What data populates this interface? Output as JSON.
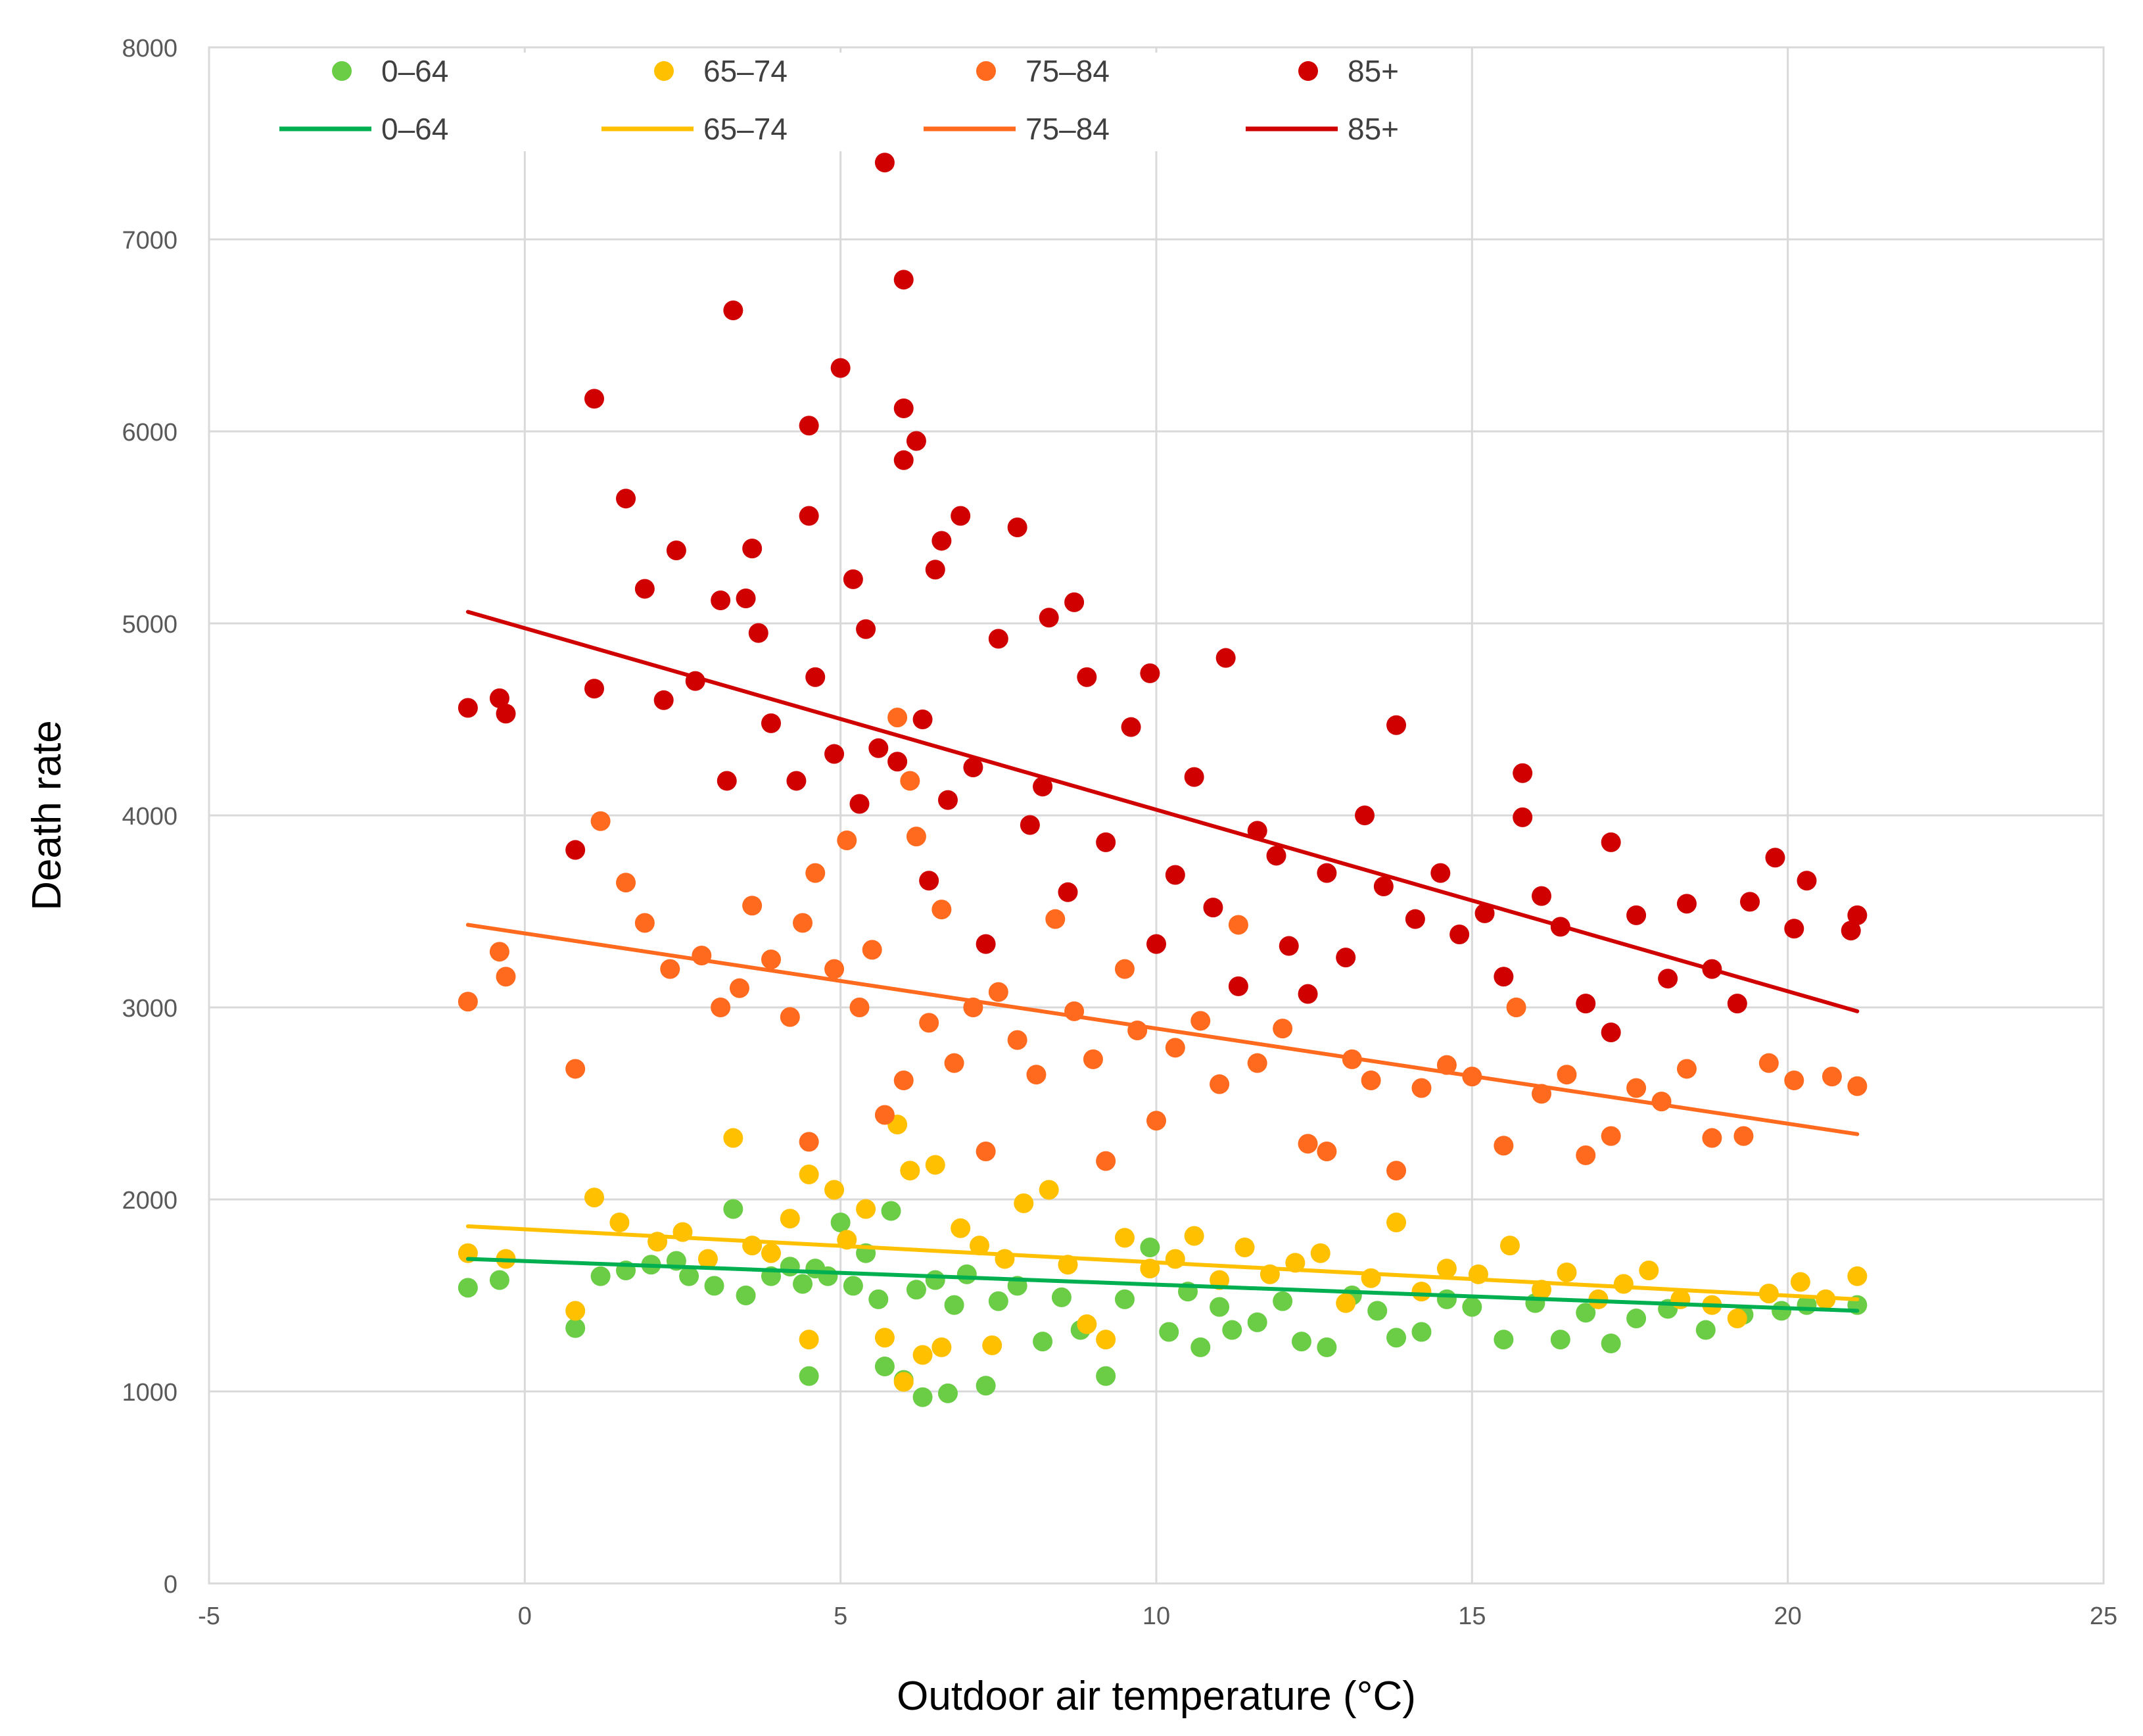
{
  "chart_data": {
    "type": "scatter",
    "title": "",
    "xlabel": "Outdoor air temperature (°C)",
    "ylabel": "Death rate",
    "xlim": [
      -5,
      25
    ],
    "ylim": [
      0,
      8000
    ],
    "x_ticks": [
      "-5",
      "0",
      "5",
      "10",
      "15",
      "20",
      "25"
    ],
    "y_ticks": [
      "0",
      "1000",
      "2000",
      "3000",
      "4000",
      "5000",
      "6000",
      "7000",
      "8000"
    ],
    "grid": true,
    "legend_position": "top",
    "series": [
      {
        "name": "0–64",
        "kind": "points",
        "color": "#6acd45",
        "points": [
          [
            -0.9,
            1540
          ],
          [
            -0.4,
            1580
          ],
          [
            0.8,
            1330
          ],
          [
            1.2,
            1600
          ],
          [
            1.6,
            1630
          ],
          [
            2.0,
            1660
          ],
          [
            2.4,
            1680
          ],
          [
            2.6,
            1600
          ],
          [
            3.0,
            1550
          ],
          [
            3.3,
            1950
          ],
          [
            3.5,
            1500
          ],
          [
            3.9,
            1600
          ],
          [
            4.2,
            1650
          ],
          [
            4.4,
            1560
          ],
          [
            4.5,
            1080
          ],
          [
            4.6,
            1640
          ],
          [
            4.8,
            1600
          ],
          [
            5.0,
            1880
          ],
          [
            5.2,
            1550
          ],
          [
            5.4,
            1720
          ],
          [
            5.6,
            1480
          ],
          [
            5.7,
            1130
          ],
          [
            5.8,
            1940
          ],
          [
            6.0,
            1060
          ],
          [
            6.2,
            1530
          ],
          [
            6.3,
            970
          ],
          [
            6.5,
            1580
          ],
          [
            6.7,
            990
          ],
          [
            6.8,
            1450
          ],
          [
            7.0,
            1610
          ],
          [
            7.3,
            1030
          ],
          [
            7.5,
            1470
          ],
          [
            7.8,
            1550
          ],
          [
            8.2,
            1260
          ],
          [
            8.5,
            1490
          ],
          [
            8.8,
            1320
          ],
          [
            9.2,
            1080
          ],
          [
            9.5,
            1480
          ],
          [
            9.9,
            1750
          ],
          [
            10.2,
            1310
          ],
          [
            10.5,
            1520
          ],
          [
            10.7,
            1230
          ],
          [
            11.0,
            1440
          ],
          [
            11.2,
            1320
          ],
          [
            11.6,
            1360
          ],
          [
            12.0,
            1470
          ],
          [
            12.3,
            1260
          ],
          [
            12.7,
            1230
          ],
          [
            13.1,
            1500
          ],
          [
            13.5,
            1420
          ],
          [
            13.8,
            1280
          ],
          [
            14.2,
            1310
          ],
          [
            14.6,
            1480
          ],
          [
            15.0,
            1440
          ],
          [
            15.5,
            1270
          ],
          [
            16.0,
            1460
          ],
          [
            16.4,
            1270
          ],
          [
            16.8,
            1410
          ],
          [
            17.2,
            1250
          ],
          [
            17.6,
            1380
          ],
          [
            18.1,
            1430
          ],
          [
            18.7,
            1320
          ],
          [
            19.3,
            1400
          ],
          [
            19.9,
            1420
          ],
          [
            20.3,
            1450
          ],
          [
            21.1,
            1450
          ]
        ]
      },
      {
        "name": "65–74",
        "kind": "points",
        "color": "#ffc000",
        "points": [
          [
            -0.9,
            1720
          ],
          [
            -0.3,
            1690
          ],
          [
            0.8,
            1420
          ],
          [
            1.1,
            2010
          ],
          [
            1.5,
            1880
          ],
          [
            2.1,
            1780
          ],
          [
            2.5,
            1830
          ],
          [
            2.9,
            1690
          ],
          [
            3.3,
            2320
          ],
          [
            3.6,
            1760
          ],
          [
            3.9,
            1720
          ],
          [
            4.2,
            1900
          ],
          [
            4.5,
            1270
          ],
          [
            4.5,
            2130
          ],
          [
            4.9,
            2050
          ],
          [
            5.1,
            1790
          ],
          [
            5.4,
            1950
          ],
          [
            5.7,
            1280
          ],
          [
            5.9,
            2390
          ],
          [
            6.0,
            1050
          ],
          [
            6.1,
            2150
          ],
          [
            6.3,
            1190
          ],
          [
            6.5,
            2180
          ],
          [
            6.6,
            1230
          ],
          [
            6.9,
            1850
          ],
          [
            7.2,
            1760
          ],
          [
            7.4,
            1240
          ],
          [
            7.6,
            1690
          ],
          [
            7.9,
            1980
          ],
          [
            8.3,
            2050
          ],
          [
            8.6,
            1660
          ],
          [
            8.9,
            1350
          ],
          [
            9.2,
            1270
          ],
          [
            9.5,
            1800
          ],
          [
            9.9,
            1640
          ],
          [
            10.3,
            1690
          ],
          [
            10.6,
            1810
          ],
          [
            11.0,
            1580
          ],
          [
            11.4,
            1750
          ],
          [
            11.8,
            1610
          ],
          [
            12.2,
            1670
          ],
          [
            12.6,
            1720
          ],
          [
            13.0,
            1460
          ],
          [
            13.4,
            1590
          ],
          [
            13.8,
            1880
          ],
          [
            14.2,
            1520
          ],
          [
            14.6,
            1640
          ],
          [
            15.1,
            1610
          ],
          [
            15.6,
            1760
          ],
          [
            16.1,
            1530
          ],
          [
            16.5,
            1620
          ],
          [
            17.0,
            1480
          ],
          [
            17.4,
            1560
          ],
          [
            17.8,
            1630
          ],
          [
            18.3,
            1480
          ],
          [
            18.8,
            1450
          ],
          [
            19.2,
            1380
          ],
          [
            19.7,
            1510
          ],
          [
            20.2,
            1570
          ],
          [
            20.6,
            1480
          ],
          [
            21.1,
            1600
          ]
        ]
      },
      {
        "name": "75–84",
        "kind": "points",
        "color": "#ff6a1f",
        "points": [
          [
            -0.9,
            3030
          ],
          [
            -0.4,
            3290
          ],
          [
            -0.3,
            3160
          ],
          [
            0.8,
            2680
          ],
          [
            1.2,
            3970
          ],
          [
            1.6,
            3650
          ],
          [
            1.9,
            3440
          ],
          [
            2.3,
            3200
          ],
          [
            2.8,
            3270
          ],
          [
            3.1,
            3000
          ],
          [
            3.4,
            3100
          ],
          [
            3.6,
            3530
          ],
          [
            3.9,
            3250
          ],
          [
            4.2,
            2950
          ],
          [
            4.4,
            3440
          ],
          [
            4.5,
            2300
          ],
          [
            4.6,
            3700
          ],
          [
            4.9,
            3200
          ],
          [
            5.1,
            3870
          ],
          [
            5.3,
            3000
          ],
          [
            5.5,
            3300
          ],
          [
            5.7,
            2440
          ],
          [
            5.9,
            4510
          ],
          [
            6.0,
            2620
          ],
          [
            6.1,
            4180
          ],
          [
            6.2,
            3890
          ],
          [
            6.4,
            2920
          ],
          [
            6.6,
            3510
          ],
          [
            6.8,
            2710
          ],
          [
            7.1,
            3000
          ],
          [
            7.3,
            2250
          ],
          [
            7.5,
            3080
          ],
          [
            7.8,
            2830
          ],
          [
            8.1,
            2650
          ],
          [
            8.4,
            3460
          ],
          [
            8.7,
            2980
          ],
          [
            9.0,
            2730
          ],
          [
            9.2,
            2200
          ],
          [
            9.5,
            3200
          ],
          [
            9.7,
            2880
          ],
          [
            10.0,
            2410
          ],
          [
            10.3,
            2790
          ],
          [
            10.7,
            2930
          ],
          [
            11.0,
            2600
          ],
          [
            11.3,
            3430
          ],
          [
            11.6,
            2710
          ],
          [
            12.0,
            2890
          ],
          [
            12.4,
            2290
          ],
          [
            12.7,
            2250
          ],
          [
            13.1,
            2730
          ],
          [
            13.4,
            2620
          ],
          [
            13.8,
            2150
          ],
          [
            14.2,
            2580
          ],
          [
            14.6,
            2700
          ],
          [
            15.0,
            2640
          ],
          [
            15.5,
            2280
          ],
          [
            15.7,
            3000
          ],
          [
            16.1,
            2550
          ],
          [
            16.5,
            2650
          ],
          [
            16.8,
            2230
          ],
          [
            17.2,
            2330
          ],
          [
            17.6,
            2580
          ],
          [
            18.0,
            2510
          ],
          [
            18.4,
            2680
          ],
          [
            18.8,
            2320
          ],
          [
            19.3,
            2330
          ],
          [
            19.7,
            2710
          ],
          [
            20.1,
            2620
          ],
          [
            20.7,
            2640
          ],
          [
            21.1,
            2590
          ]
        ]
      },
      {
        "name": "85+",
        "kind": "points",
        "color": "#d00000",
        "points": [
          [
            -0.9,
            4560
          ],
          [
            -0.4,
            4610
          ],
          [
            -0.3,
            4530
          ],
          [
            0.8,
            3820
          ],
          [
            1.1,
            6170
          ],
          [
            1.1,
            4660
          ],
          [
            1.6,
            5650
          ],
          [
            1.9,
            5180
          ],
          [
            2.2,
            4600
          ],
          [
            2.4,
            5380
          ],
          [
            2.7,
            4700
          ],
          [
            3.1,
            5120
          ],
          [
            3.2,
            4180
          ],
          [
            3.3,
            6630
          ],
          [
            3.5,
            5130
          ],
          [
            3.6,
            5390
          ],
          [
            3.7,
            4950
          ],
          [
            3.9,
            4480
          ],
          [
            4.3,
            4180
          ],
          [
            4.5,
            6030
          ],
          [
            4.5,
            5560
          ],
          [
            4.6,
            4720
          ],
          [
            4.9,
            4320
          ],
          [
            5.0,
            6330
          ],
          [
            5.2,
            5230
          ],
          [
            5.3,
            4060
          ],
          [
            5.4,
            4970
          ],
          [
            5.6,
            4350
          ],
          [
            5.7,
            7400
          ],
          [
            5.9,
            4280
          ],
          [
            6.0,
            6790
          ],
          [
            6.0,
            6120
          ],
          [
            6.0,
            5850
          ],
          [
            6.2,
            5950
          ],
          [
            6.3,
            4500
          ],
          [
            6.4,
            3660
          ],
          [
            6.5,
            5280
          ],
          [
            6.6,
            5430
          ],
          [
            6.7,
            4080
          ],
          [
            6.9,
            5560
          ],
          [
            7.1,
            4250
          ],
          [
            7.3,
            3330
          ],
          [
            7.5,
            4920
          ],
          [
            7.8,
            5500
          ],
          [
            8.0,
            3950
          ],
          [
            8.2,
            4150
          ],
          [
            8.3,
            5030
          ],
          [
            8.6,
            3600
          ],
          [
            8.7,
            5110
          ],
          [
            8.9,
            4720
          ],
          [
            9.2,
            3860
          ],
          [
            9.6,
            4460
          ],
          [
            9.9,
            4740
          ],
          [
            10.0,
            3330
          ],
          [
            10.3,
            3690
          ],
          [
            10.6,
            4200
          ],
          [
            10.9,
            3520
          ],
          [
            11.1,
            4820
          ],
          [
            11.3,
            3110
          ],
          [
            11.6,
            3920
          ],
          [
            11.9,
            3790
          ],
          [
            12.1,
            3320
          ],
          [
            12.4,
            3070
          ],
          [
            12.7,
            3700
          ],
          [
            13.0,
            3260
          ],
          [
            13.3,
            4000
          ],
          [
            13.6,
            3630
          ],
          [
            13.8,
            4470
          ],
          [
            14.1,
            3460
          ],
          [
            14.5,
            3700
          ],
          [
            14.8,
            3380
          ],
          [
            15.2,
            3490
          ],
          [
            15.5,
            3160
          ],
          [
            15.8,
            4220
          ],
          [
            15.8,
            3990
          ],
          [
            16.1,
            3580
          ],
          [
            16.4,
            3420
          ],
          [
            16.8,
            3020
          ],
          [
            17.2,
            2870
          ],
          [
            17.2,
            3860
          ],
          [
            17.6,
            3480
          ],
          [
            18.1,
            3150
          ],
          [
            18.4,
            3540
          ],
          [
            18.8,
            3200
          ],
          [
            19.2,
            3020
          ],
          [
            19.4,
            3550
          ],
          [
            19.8,
            3780
          ],
          [
            20.1,
            3410
          ],
          [
            20.3,
            3660
          ],
          [
            21.0,
            3400
          ],
          [
            21.1,
            3480
          ]
        ]
      },
      {
        "name": "0–64",
        "kind": "trend",
        "color": "#00b050",
        "x": [
          -0.9,
          21.1
        ],
        "y": [
          1690,
          1420
        ]
      },
      {
        "name": "65–74",
        "kind": "trend",
        "color": "#ffc000",
        "x": [
          -0.9,
          21.1
        ],
        "y": [
          1860,
          1480
        ]
      },
      {
        "name": "75–84",
        "kind": "trend",
        "color": "#ff6a1f",
        "x": [
          -0.9,
          21.1
        ],
        "y": [
          3430,
          2340
        ]
      },
      {
        "name": "85+",
        "kind": "trend",
        "color": "#d00000",
        "x": [
          -0.9,
          21.1
        ],
        "y": [
          5060,
          2980
        ]
      }
    ]
  }
}
